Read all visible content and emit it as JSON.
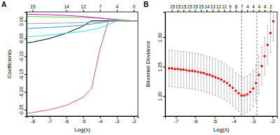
{
  "chart_data": [
    {
      "type": "line",
      "panel_label": "A",
      "xlabel": "Log(λ)",
      "ylabel": "Coefficients",
      "x": [
        -8.3,
        -8,
        -7,
        -6,
        -5,
        -4.5,
        -4,
        -3.5,
        -3,
        -2.5,
        -2,
        -1.8
      ],
      "series": [
        {
          "color": "#DF536B",
          "values": [
            -0.26,
            -0.258,
            -0.25,
            -0.238,
            -0.215,
            -0.19,
            -0.08,
            0,
            0,
            0,
            0,
            0
          ]
        },
        {
          "color": "#000000",
          "values": [
            -0.062,
            -0.06,
            -0.05,
            -0.035,
            -0.015,
            0,
            0,
            0,
            0,
            0,
            0,
            0
          ]
        },
        {
          "color": "#28E2E5",
          "values": [
            -0.045,
            -0.044,
            -0.04,
            -0.035,
            -0.03,
            -0.025,
            -0.02,
            -0.01,
            0,
            0,
            0,
            0
          ]
        },
        {
          "color": "#2297E6",
          "values": [
            -0.022,
            -0.021,
            -0.019,
            -0.016,
            -0.012,
            -0.009,
            -0.006,
            -0.002,
            0,
            0,
            0,
            0
          ]
        },
        {
          "color": "#61D04F",
          "values": [
            0.012,
            0.012,
            0.011,
            0.01,
            0.009,
            0.008,
            0.007,
            0.006,
            0.004,
            0.002,
            0,
            0
          ]
        },
        {
          "color": "#CD0BBC",
          "values": [
            0.018,
            0.018,
            0.017,
            0.015,
            0.012,
            0.01,
            0.008,
            0.005,
            0.002,
            0,
            0,
            0
          ]
        },
        {
          "color": "#9E9E9E",
          "values": [
            -0.008,
            -0.008,
            -0.007,
            -0.006,
            -0.005,
            -0.004,
            -0.003,
            -0.001,
            0,
            0,
            0,
            0
          ]
        }
      ],
      "xlim": [
        -8.35,
        -1.75
      ],
      "ylim": [
        -0.268,
        0.025
      ],
      "xticks": [
        -8,
        -7,
        -6,
        -5,
        -4,
        -3,
        -2
      ],
      "yticks": [
        -0.25,
        {
          "value": -0.2,
          "label": "-0.20"
        },
        -0.15,
        {
          "value": -0.1,
          "label": "-0.10"
        },
        -0.05,
        {
          "value": 0,
          "label": "0.00"
        }
      ],
      "df_ticks": [
        {
          "value": -8,
          "label": "15"
        },
        {
          "value": -6,
          "label": "14"
        },
        {
          "value": -5,
          "label": "12"
        },
        {
          "value": -4,
          "label": "7"
        },
        {
          "value": -3,
          "label": "4"
        },
        {
          "value": -2,
          "label": "0"
        }
      ]
    },
    {
      "type": "scatter",
      "panel_label": "B",
      "xlabel": "Log(λ)",
      "ylabel": "Binomial Deviance",
      "color": "#FF0000",
      "x": [
        -7.35,
        -7.2,
        -7.05,
        -6.9,
        -6.75,
        -6.6,
        -6.45,
        -6.3,
        -6.15,
        -6.0,
        -5.85,
        -5.7,
        -5.55,
        -5.4,
        -5.25,
        -5.1,
        -4.95,
        -4.8,
        -4.65,
        -4.5,
        -4.35,
        -4.2,
        -4.05,
        -3.9,
        -3.75,
        -3.6,
        -3.45,
        -3.3,
        -3.15,
        -3.0,
        -2.85,
        -2.7,
        -2.55,
        -2.4,
        -2.25,
        -2.1,
        -1.95
      ],
      "values": [
        1.247,
        1.247,
        1.246,
        1.246,
        1.245,
        1.245,
        1.244,
        1.243,
        1.243,
        1.242,
        1.241,
        1.24,
        1.239,
        1.237,
        1.236,
        1.234,
        1.232,
        1.23,
        1.228,
        1.225,
        1.222,
        1.218,
        1.214,
        1.209,
        1.205,
        1.201,
        1.201,
        1.203,
        1.207,
        1.213,
        1.222,
        1.236,
        1.251,
        1.268,
        1.287,
        1.307,
        1.327
      ],
      "errors": [
        0.031,
        0.031,
        0.031,
        0.031,
        0.031,
        0.031,
        0.031,
        0.031,
        0.031,
        0.031,
        0.031,
        0.031,
        0.031,
        0.031,
        0.031,
        0.031,
        0.031,
        0.031,
        0.031,
        0.031,
        0.031,
        0.031,
        0.031,
        0.031,
        0.031,
        0.031,
        0.031,
        0.031,
        0.031,
        0.031,
        0.031,
        0.032,
        0.032,
        0.032,
        0.033,
        0.033,
        0.033
      ],
      "vlines": [
        -3.6,
        -2.8
      ],
      "xlim": [
        -7.55,
        -1.75
      ],
      "ylim": [
        1.166,
        1.343
      ],
      "xticks": [
        -7,
        -6,
        -5,
        -4,
        -3,
        -2
      ],
      "yticks": [
        {
          "value": 1.2,
          "label": "1.20"
        },
        1.25,
        {
          "value": 1.3,
          "label": "1.30"
        }
      ],
      "df_ticks": [
        {
          "value": -7.2,
          "label": "15"
        },
        {
          "value": -6.9,
          "label": "15"
        },
        {
          "value": -6.6,
          "label": "15"
        },
        {
          "value": -6.3,
          "label": "15"
        },
        {
          "value": -6.0,
          "label": "15"
        },
        {
          "value": -5.7,
          "label": "15"
        },
        {
          "value": -5.4,
          "label": "14"
        },
        {
          "value": -5.1,
          "label": "13"
        },
        {
          "value": -4.8,
          "label": "12"
        },
        {
          "value": -4.5,
          "label": "11"
        },
        {
          "value": -4.2,
          "label": "9"
        },
        {
          "value": -3.9,
          "label": "8"
        },
        {
          "value": -3.6,
          "label": "7"
        },
        {
          "value": -3.3,
          "label": "4"
        },
        {
          "value": -3.0,
          "label": "4"
        },
        {
          "value": -2.7,
          "label": "4"
        },
        {
          "value": -2.4,
          "label": "4"
        },
        {
          "value": -2.1,
          "label": "2"
        }
      ]
    }
  ]
}
